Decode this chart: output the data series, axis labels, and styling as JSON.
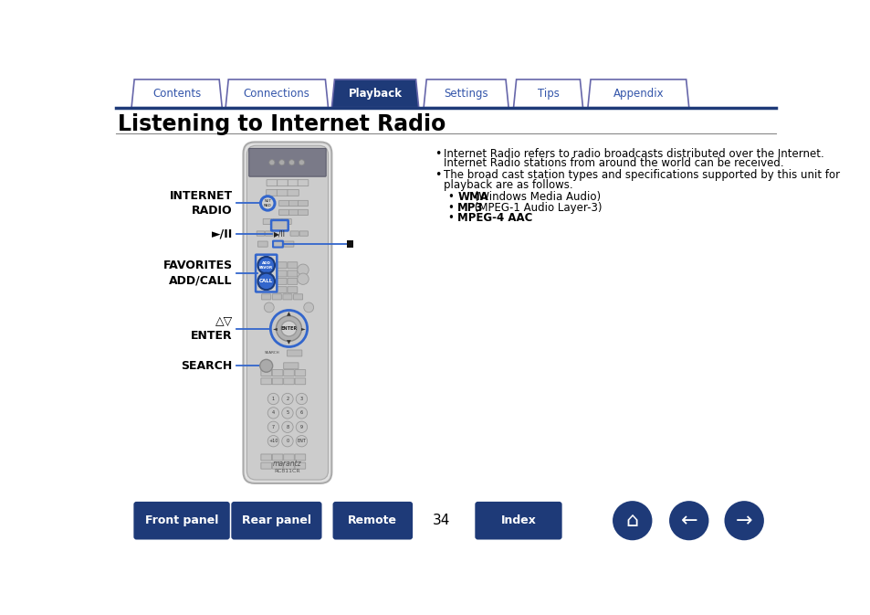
{
  "bg_color": "#ffffff",
  "tab_items": [
    "Contents",
    "Connections",
    "Playback",
    "Settings",
    "Tips",
    "Appendix"
  ],
  "active_tab": "Playback",
  "active_tab_color": "#1e3a78",
  "inactive_tab_color": "#ffffff",
  "tab_border_color": "#6666aa",
  "tab_text_active": "#ffffff",
  "tab_text_inactive": "#3355aa",
  "title": "Listening to Internet Radio",
  "title_color": "#000000",
  "divider_color": "#1e3a78",
  "sub_bullets": [
    {
      "bold_part": "WMA",
      "rest": " (Windows Media Audio)"
    },
    {
      "bold_part": "MP3",
      "rest": " (MPEG-1 Audio Layer-3)"
    },
    {
      "bold_part": "MPEG-4 AAC",
      "rest": ""
    }
  ],
  "page_number": "34",
  "button_color_dark": "#1e3a78",
  "button_text_color": "#ffffff",
  "callout_line_color": "#3366cc",
  "remote_body_color": "#e0e0e0",
  "remote_inner_color": "#cccccc",
  "remote_border_color": "#aaaaaa",
  "highlight_blue": "#3366cc"
}
